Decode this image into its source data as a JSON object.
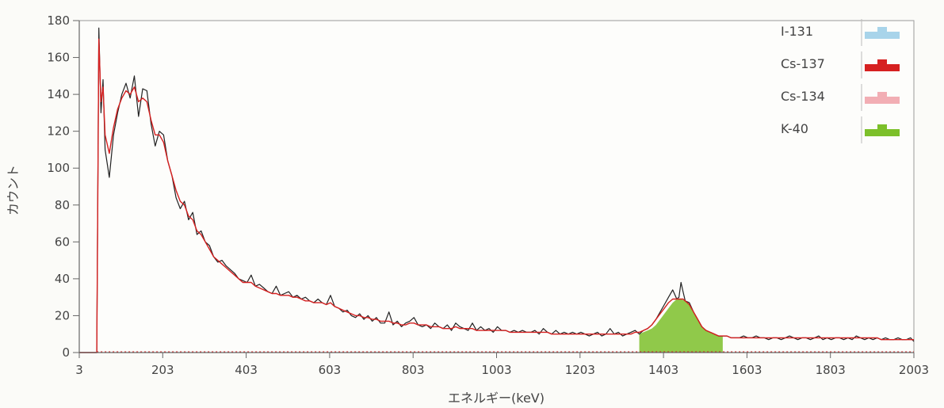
{
  "chart_data": {
    "type": "line",
    "title": "",
    "xlabel": "エネルギー(keV)",
    "ylabel": "カウント",
    "xlim": [
      3,
      2003
    ],
    "ylim": [
      0,
      180
    ],
    "x_ticks": [
      3,
      203,
      403,
      603,
      803,
      1003,
      1203,
      1403,
      1603,
      1803,
      2003
    ],
    "y_ticks": [
      0,
      20,
      40,
      60,
      80,
      100,
      120,
      140,
      160,
      180
    ],
    "grid": false,
    "legend_position": "top-right",
    "legend": [
      {
        "label": "I-131",
        "color": "#a8d4ea"
      },
      {
        "label": "Cs-137",
        "color": "#d62020"
      },
      {
        "label": "Cs-134",
        "color": "#f2aeb4"
      },
      {
        "label": "K-40",
        "color": "#7cc02a"
      }
    ],
    "series": [
      {
        "color": "#222222",
        "x": [
          3,
          45,
          50,
          55,
          60,
          65,
          75,
          85,
          95,
          105,
          115,
          125,
          135,
          145,
          155,
          165,
          175,
          185,
          195,
          205,
          215,
          225,
          235,
          245,
          255,
          265,
          275,
          285,
          295,
          305,
          315,
          325,
          335,
          345,
          355,
          365,
          375,
          385,
          395,
          405,
          415,
          425,
          435,
          445,
          455,
          465,
          475,
          485,
          495,
          505,
          515,
          525,
          535,
          545,
          555,
          565,
          575,
          585,
          595,
          605,
          615,
          625,
          635,
          645,
          655,
          665,
          675,
          685,
          695,
          705,
          715,
          725,
          735,
          745,
          755,
          765,
          775,
          785,
          795,
          805,
          815,
          825,
          835,
          845,
          855,
          865,
          875,
          885,
          895,
          905,
          915,
          925,
          935,
          945,
          955,
          965,
          975,
          985,
          995,
          1005,
          1015,
          1025,
          1035,
          1045,
          1055,
          1065,
          1075,
          1085,
          1095,
          1105,
          1115,
          1125,
          1135,
          1145,
          1155,
          1165,
          1175,
          1185,
          1195,
          1205,
          1215,
          1225,
          1235,
          1245,
          1255,
          1265,
          1275,
          1285,
          1295,
          1305,
          1315,
          1325,
          1335,
          1345,
          1355,
          1365,
          1375,
          1385,
          1395,
          1405,
          1415,
          1425,
          1435,
          1440,
          1445,
          1450,
          1455,
          1465,
          1475,
          1485,
          1495,
          1505,
          1515,
          1525,
          1535,
          1545,
          1555,
          1565,
          1575,
          1585,
          1595,
          1605,
          1615,
          1625,
          1635,
          1645,
          1655,
          1665,
          1675,
          1685,
          1695,
          1705,
          1715,
          1725,
          1735,
          1745,
          1755,
          1765,
          1775,
          1785,
          1795,
          1805,
          1815,
          1825,
          1835,
          1845,
          1855,
          1865,
          1875,
          1885,
          1895,
          1905,
          1915,
          1925,
          1935,
          1945,
          1955,
          1965,
          1975,
          1985,
          1995,
          2003
        ],
        "y": [
          0,
          0,
          176,
          130,
          148,
          110,
          95,
          118,
          130,
          140,
          146,
          138,
          150,
          128,
          143,
          142,
          124,
          112,
          120,
          118,
          104,
          96,
          84,
          78,
          82,
          72,
          76,
          64,
          66,
          60,
          58,
          52,
          49,
          50,
          47,
          45,
          43,
          40,
          39,
          38,
          42,
          36,
          37,
          35,
          33,
          32,
          36,
          31,
          32,
          33,
          30,
          31,
          29,
          30,
          28,
          27,
          29,
          27,
          26,
          31,
          25,
          24,
          22,
          23,
          20,
          19,
          21,
          18,
          20,
          17,
          19,
          16,
          16,
          22,
          15,
          17,
          14,
          16,
          17,
          19,
          15,
          14,
          15,
          13,
          16,
          14,
          13,
          15,
          12,
          16,
          14,
          13,
          12,
          16,
          12,
          14,
          12,
          13,
          11,
          14,
          12,
          12,
          11,
          12,
          11,
          12,
          11,
          11,
          12,
          10,
          13,
          11,
          10,
          12,
          10,
          11,
          10,
          11,
          10,
          11,
          10,
          9,
          10,
          11,
          9,
          10,
          13,
          10,
          11,
          9,
          10,
          11,
          12,
          10,
          12,
          13,
          15,
          18,
          22,
          26,
          30,
          34,
          29,
          30,
          38,
          33,
          28,
          27,
          22,
          18,
          14,
          12,
          11,
          10,
          9,
          9,
          9,
          8,
          8,
          8,
          9,
          8,
          8,
          9,
          8,
          8,
          7,
          8,
          8,
          7,
          8,
          9,
          8,
          7,
          8,
          8,
          7,
          8,
          9,
          7,
          8,
          7,
          8,
          8,
          7,
          8,
          7,
          9,
          8,
          7,
          8,
          7,
          8,
          7,
          8,
          7,
          7,
          8,
          7,
          7,
          8,
          6
        ]
      },
      {
        "name": "Cs-137",
        "color": "#d62020",
        "x": [
          3,
          45,
          50,
          55,
          60,
          65,
          75,
          85,
          95,
          105,
          115,
          125,
          135,
          145,
          155,
          165,
          175,
          185,
          195,
          205,
          215,
          225,
          235,
          245,
          255,
          265,
          275,
          285,
          295,
          305,
          315,
          325,
          335,
          345,
          355,
          365,
          375,
          385,
          395,
          405,
          415,
          425,
          435,
          445,
          455,
          465,
          475,
          485,
          495,
          505,
          515,
          525,
          535,
          545,
          555,
          565,
          575,
          585,
          595,
          605,
          615,
          625,
          635,
          645,
          655,
          665,
          675,
          685,
          695,
          705,
          715,
          725,
          735,
          745,
          755,
          765,
          775,
          785,
          795,
          805,
          815,
          825,
          835,
          845,
          855,
          865,
          875,
          885,
          895,
          905,
          915,
          925,
          935,
          945,
          955,
          965,
          975,
          985,
          995,
          1005,
          1015,
          1025,
          1035,
          1045,
          1055,
          1065,
          1075,
          1085,
          1095,
          1105,
          1115,
          1125,
          1135,
          1145,
          1155,
          1165,
          1175,
          1185,
          1195,
          1205,
          1215,
          1225,
          1235,
          1245,
          1255,
          1265,
          1275,
          1285,
          1295,
          1305,
          1315,
          1325,
          1335,
          1345,
          1355,
          1365,
          1375,
          1385,
          1395,
          1405,
          1415,
          1425,
          1435,
          1440,
          1445,
          1450,
          1455,
          1465,
          1475,
          1485,
          1495,
          1505,
          1515,
          1525,
          1535,
          1545,
          1555,
          1565,
          1575,
          1585,
          1595,
          1605,
          1615,
          1625,
          1635,
          1645,
          1655,
          1665,
          1675,
          1685,
          1695,
          1705,
          1715,
          1725,
          1735,
          1745,
          1755,
          1765,
          1775,
          1785,
          1795,
          1805,
          1815,
          1825,
          1835,
          1845,
          1855,
          1865,
          1875,
          1885,
          1895,
          1905,
          1915,
          1925,
          1935,
          1945,
          1955,
          1965,
          1975,
          1985,
          1995,
          2003
        ],
        "y": [
          0,
          0,
          170,
          136,
          144,
          118,
          108,
          122,
          132,
          138,
          142,
          140,
          144,
          136,
          138,
          136,
          126,
          118,
          118,
          114,
          104,
          96,
          88,
          82,
          80,
          74,
          72,
          66,
          64,
          60,
          56,
          52,
          50,
          48,
          46,
          44,
          42,
          40,
          38,
          38,
          38,
          36,
          35,
          34,
          33,
          32,
          32,
          31,
          31,
          31,
          30,
          30,
          29,
          28,
          28,
          27,
          27,
          27,
          26,
          27,
          25,
          24,
          23,
          22,
          21,
          20,
          20,
          19,
          19,
          18,
          18,
          17,
          17,
          17,
          16,
          16,
          15,
          15,
          16,
          16,
          15,
          15,
          15,
          14,
          14,
          14,
          13,
          13,
          13,
          14,
          13,
          13,
          13,
          13,
          12,
          12,
          12,
          12,
          12,
          12,
          12,
          12,
          11,
          11,
          11,
          11,
          11,
          11,
          11,
          11,
          11,
          11,
          10,
          10,
          10,
          10,
          10,
          10,
          10,
          10,
          10,
          10,
          10,
          10,
          10,
          10,
          10,
          10,
          10,
          10,
          10,
          10,
          11,
          11,
          12,
          13,
          15,
          18,
          21,
          24,
          27,
          29,
          29,
          29,
          29,
          29,
          28,
          26,
          22,
          18,
          14,
          12,
          11,
          10,
          9,
          9,
          9,
          8,
          8,
          8,
          8,
          8,
          8,
          8,
          8,
          8,
          8,
          8,
          8,
          8,
          8,
          8,
          8,
          8,
          8,
          8,
          8,
          8,
          8,
          8,
          8,
          8,
          8,
          8,
          8,
          8,
          8,
          8,
          8,
          8,
          8,
          8,
          8,
          7,
          7,
          7,
          7,
          7,
          7,
          7,
          7,
          7
        ]
      },
      {
        "name": "K-40",
        "color": "#7cc02a",
        "fill": true,
        "x": [
          1345,
          1355,
          1365,
          1375,
          1385,
          1395,
          1405,
          1415,
          1425,
          1435,
          1445,
          1455,
          1465,
          1475,
          1485,
          1495,
          1505,
          1515,
          1525,
          1535,
          1545
        ],
        "y": [
          10,
          11,
          12,
          13,
          15,
          18,
          21,
          24,
          27,
          29,
          29,
          28,
          26,
          22,
          18,
          14,
          12,
          11,
          10,
          9,
          9
        ]
      }
    ]
  }
}
